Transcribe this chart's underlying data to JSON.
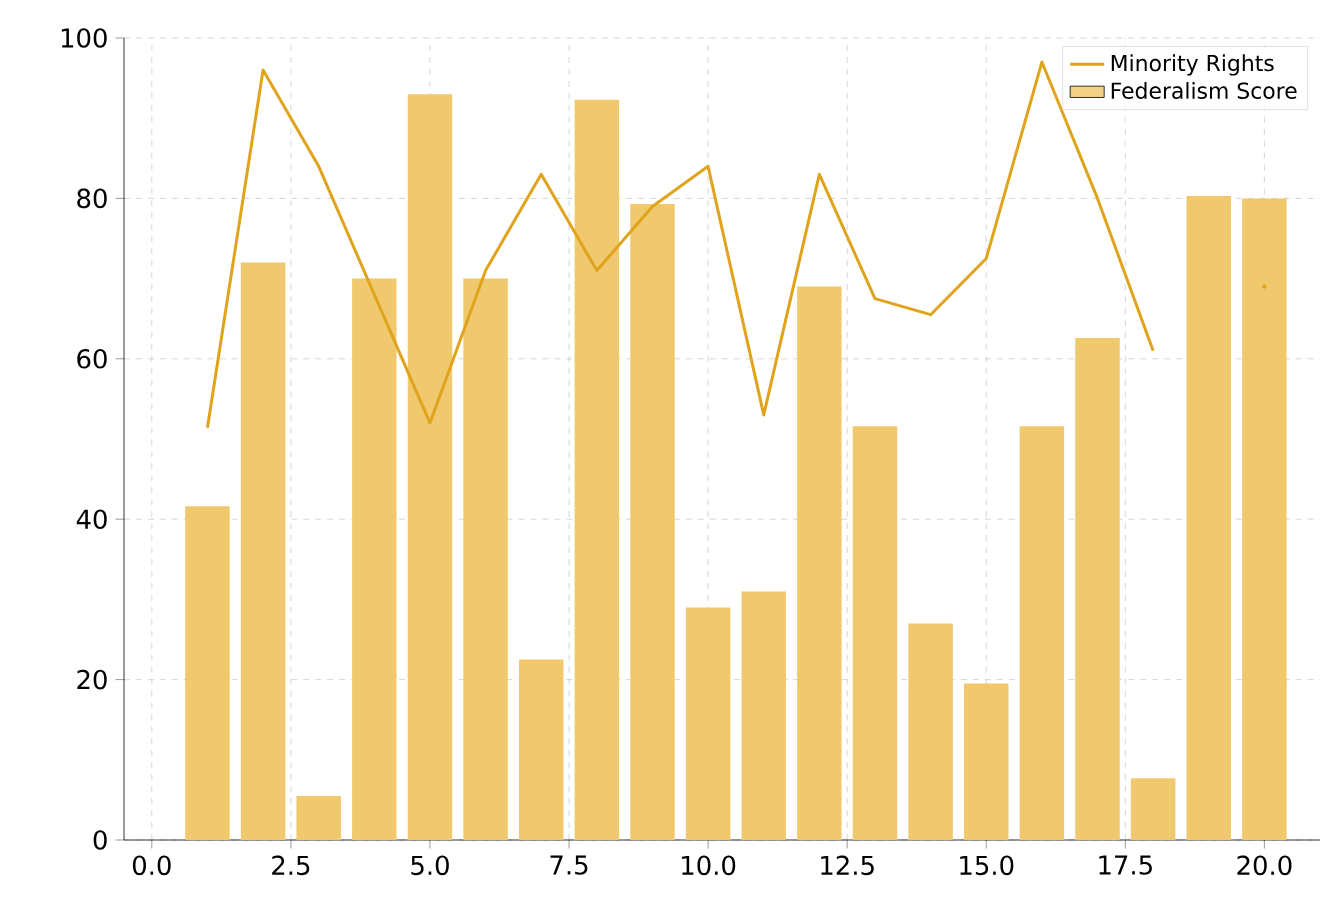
{
  "chart_data": {
    "type": "bar",
    "x": [
      1,
      2,
      3,
      4,
      5,
      6,
      7,
      8,
      9,
      10,
      11,
      12,
      13,
      14,
      15,
      16,
      17,
      18,
      19,
      20
    ],
    "series": [
      {
        "name": "Federalism Score",
        "color": "#f0c96e",
        "values": [
          41.6,
          72,
          5.5,
          70,
          93,
          70,
          22.5,
          92.3,
          79.3,
          29,
          31,
          69,
          51.6,
          27,
          19.5,
          51.6,
          62.6,
          7.7,
          80.3,
          80
        ]
      },
      {
        "name": "Minority Rights",
        "type": "line",
        "color": "#e0a31c",
        "values": [
          51.4,
          96,
          84,
          68,
          52,
          71,
          83,
          71,
          79,
          84,
          53,
          83,
          67.5,
          65.5,
          72.5,
          97,
          80,
          61,
          null,
          69
        ]
      }
    ],
    "xlim": [
      -0.5,
      21
    ],
    "ylim": [
      0,
      100
    ],
    "xticks": [
      {
        "value": 0,
        "label": "0.0"
      },
      {
        "value": 2.5,
        "label": "2.5"
      },
      {
        "value": 5,
        "label": "5.0"
      },
      {
        "value": 7.5,
        "label": "7.5"
      },
      {
        "value": 10,
        "label": "10.0"
      },
      {
        "value": 12.5,
        "label": "12.5"
      },
      {
        "value": 15,
        "label": "15.0"
      },
      {
        "value": 17.5,
        "label": "17.5"
      },
      {
        "value": 20,
        "label": "20.0"
      }
    ],
    "yticks": [
      0,
      20,
      40,
      60,
      80,
      100
    ],
    "grid": true,
    "legend": "top right"
  }
}
